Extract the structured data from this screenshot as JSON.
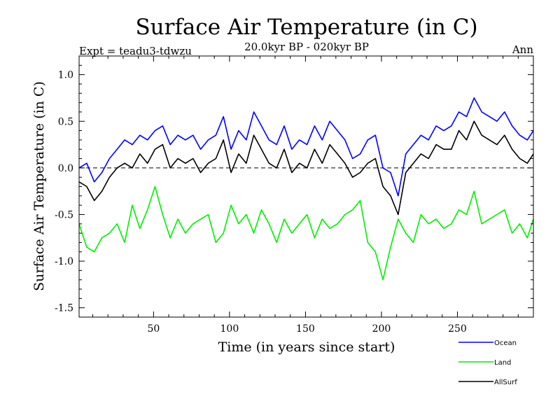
{
  "chart_data": {
    "type": "line",
    "title": "Surface Air Temperature (in C)",
    "subtitle": "20.0kyr BP - 020kyr BP",
    "experiment_label": "Expt = teadu3-tdwzu",
    "period_label": "Ann",
    "xlabel": "Time (in years since start)",
    "ylabel": "Surface Air Temperature (in C)",
    "xlim": [
      1,
      300
    ],
    "ylim": [
      -1.6,
      1.2
    ],
    "xticks": [
      50,
      100,
      150,
      200,
      250
    ],
    "yticks": [
      1.0,
      0.5,
      0.0,
      -0.5,
      -1.0,
      -1.5
    ],
    "ytick_labels": [
      "1.0",
      "0.5",
      "0.0",
      "-0.5",
      "-1.0",
      "-1.5"
    ],
    "zero_line": 0.0,
    "legend_position": "bottom-right, below axes",
    "series": [
      {
        "name": "Ocean",
        "color": "#0000ff",
        "x_start": 1,
        "x_step": 5,
        "values": [
          0.0,
          0.05,
          -0.15,
          -0.05,
          0.1,
          0.2,
          0.3,
          0.25,
          0.35,
          0.3,
          0.4,
          0.45,
          0.25,
          0.35,
          0.3,
          0.35,
          0.2,
          0.3,
          0.35,
          0.55,
          0.2,
          0.4,
          0.3,
          0.6,
          0.45,
          0.3,
          0.25,
          0.45,
          0.2,
          0.3,
          0.25,
          0.45,
          0.3,
          0.5,
          0.4,
          0.3,
          0.1,
          0.15,
          0.3,
          0.35,
          0.0,
          -0.05,
          -0.3,
          0.15,
          0.25,
          0.35,
          0.3,
          0.45,
          0.4,
          0.45,
          0.6,
          0.55,
          0.75,
          0.6,
          0.55,
          0.5,
          0.6,
          0.45,
          0.35,
          0.3,
          0.4
        ]
      },
      {
        "name": "Land",
        "color": "#00ee00",
        "x_start": 1,
        "x_step": 5,
        "values": [
          -0.6,
          -0.85,
          -0.9,
          -0.75,
          -0.7,
          -0.6,
          -0.8,
          -0.4,
          -0.65,
          -0.45,
          -0.2,
          -0.5,
          -0.75,
          -0.55,
          -0.7,
          -0.6,
          -0.55,
          -0.5,
          -0.8,
          -0.7,
          -0.4,
          -0.6,
          -0.5,
          -0.7,
          -0.45,
          -0.6,
          -0.8,
          -0.55,
          -0.7,
          -0.6,
          -0.5,
          -0.75,
          -0.55,
          -0.65,
          -0.6,
          -0.5,
          -0.45,
          -0.35,
          -0.8,
          -0.9,
          -1.2,
          -0.85,
          -0.55,
          -0.7,
          -0.8,
          -0.5,
          -0.6,
          -0.55,
          -0.65,
          -0.6,
          -0.45,
          -0.5,
          -0.25,
          -0.6,
          -0.55,
          -0.5,
          -0.45,
          -0.7,
          -0.6,
          -0.75,
          -0.55
        ]
      },
      {
        "name": "AllSurf",
        "color": "#000000",
        "x_start": 1,
        "x_step": 5,
        "values": [
          -0.15,
          -0.2,
          -0.35,
          -0.25,
          -0.1,
          0.0,
          0.05,
          0.0,
          0.15,
          0.05,
          0.2,
          0.25,
          0.0,
          0.1,
          0.05,
          0.1,
          -0.05,
          0.05,
          0.1,
          0.3,
          -0.05,
          0.15,
          0.05,
          0.35,
          0.2,
          0.05,
          0.0,
          0.2,
          -0.05,
          0.05,
          0.0,
          0.2,
          0.05,
          0.25,
          0.15,
          0.05,
          -0.1,
          -0.05,
          0.05,
          0.1,
          -0.2,
          -0.3,
          -0.5,
          -0.05,
          0.05,
          0.15,
          0.1,
          0.25,
          0.2,
          0.2,
          0.4,
          0.3,
          0.5,
          0.35,
          0.3,
          0.25,
          0.35,
          0.2,
          0.1,
          0.05,
          0.15
        ]
      }
    ]
  }
}
